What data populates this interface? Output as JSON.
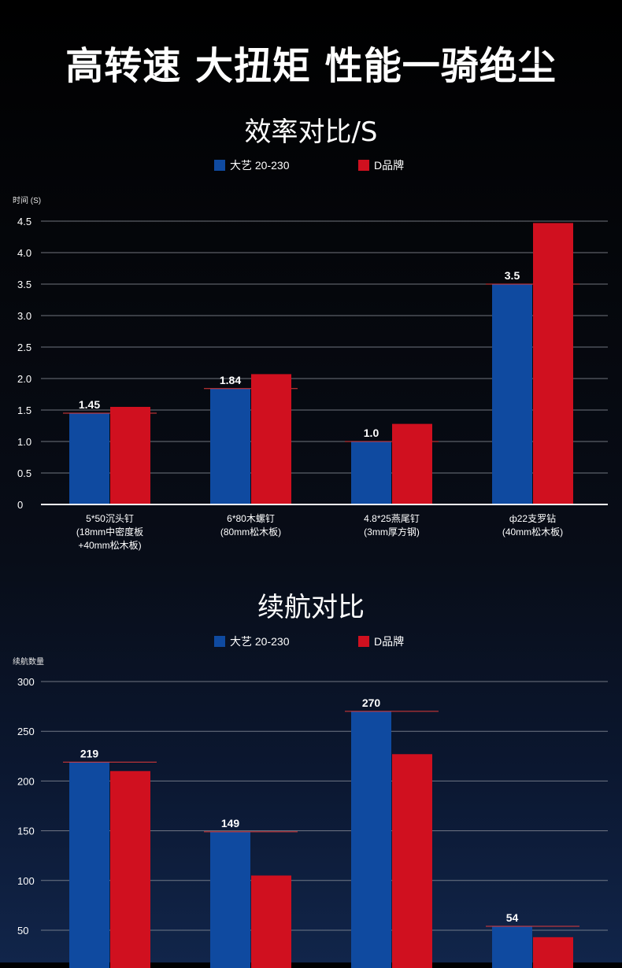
{
  "headline": "高转速  大扭矩  性能一骑绝尘",
  "colors": {
    "brand_a": "#0f4aa0",
    "brand_b": "#d0101f",
    "grid": "#8a8f99",
    "axis": "#ffffff",
    "ref_line": "#e23a3a"
  },
  "chart_data": [
    {
      "type": "bar",
      "title": "效率对比/S",
      "ylabel": "时间 (S)",
      "ylim": [
        0,
        4.5
      ],
      "yticks": [
        "0",
        "0.5",
        "1.0",
        "1.5",
        "2.0",
        "2.5",
        "3.0",
        "3.5",
        "4.0",
        "4.5"
      ],
      "grid": true,
      "legend": "top-center",
      "categories": [
        [
          "5*50沉头钉",
          "(18mm中密度板",
          "+40mm松木板)"
        ],
        [
          "6*80木螺钉",
          "(80mm松木板)"
        ],
        [
          "4.8*25燕尾钉",
          "(3mm厚方钢)"
        ],
        [
          "ф22支罗钻",
          "(40mm松木板)"
        ]
      ],
      "series": [
        {
          "name": "大艺 20-230",
          "color": "#0f4aa0",
          "values": [
            1.45,
            1.84,
            1.0,
            3.5
          ],
          "labels": [
            "1.45",
            "1.84",
            "1.0",
            "3.5"
          ]
        },
        {
          "name": "D品牌",
          "color": "#d0101f",
          "values": [
            1.55,
            2.07,
            1.28,
            4.47
          ],
          "labels": [
            "",
            "",
            "",
            ""
          ]
        }
      ]
    },
    {
      "type": "bar",
      "title": "续航对比",
      "ylabel": "续航数量",
      "ylim": [
        0,
        300
      ],
      "yticks": [
        "50",
        "100",
        "150",
        "200",
        "250",
        "300"
      ],
      "grid": true,
      "legend": "top-center",
      "categories": [
        [
          ""
        ],
        [
          ""
        ],
        [
          ""
        ],
        [
          ""
        ]
      ],
      "series": [
        {
          "name": "大艺 20-230",
          "color": "#0f4aa0",
          "values": [
            219,
            149,
            270,
            54
          ],
          "labels": [
            "219",
            "149",
            "270",
            "54"
          ]
        },
        {
          "name": "D品牌",
          "color": "#d0101f",
          "values": [
            210,
            105,
            227,
            43
          ],
          "labels": [
            "",
            "",
            "",
            ""
          ]
        }
      ]
    }
  ]
}
